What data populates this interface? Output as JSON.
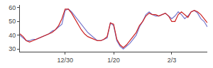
{
  "chart_data": {
    "type": "line",
    "categories": [
      null,
      null,
      null,
      null,
      null,
      null,
      null,
      null,
      null,
      null,
      null,
      null,
      null,
      null,
      "12/30",
      null,
      null,
      null,
      null,
      null,
      null,
      null,
      null,
      null,
      null,
      null,
      null,
      null,
      null,
      "1/20",
      null,
      null,
      null,
      null,
      null,
      null,
      null,
      null,
      null,
      null,
      null,
      null,
      null,
      null,
      null,
      null,
      null,
      "2/3",
      null,
      null,
      null,
      null,
      null,
      null,
      null,
      null,
      null,
      null,
      null
    ],
    "series": [
      {
        "color": "#7777cc",
        "values": [
          40,
          38,
          36,
          36,
          37,
          37,
          38,
          39,
          40,
          41,
          43,
          44,
          46,
          48,
          58,
          59,
          57,
          54,
          51,
          48,
          45,
          42,
          40,
          38,
          36,
          36,
          37,
          38,
          49,
          47,
          36,
          32,
          30,
          32,
          34,
          37,
          40,
          46,
          50,
          55,
          57,
          55,
          54,
          54,
          55,
          56,
          54,
          52,
          54,
          57,
          55,
          52,
          54,
          57,
          58,
          56,
          52,
          50,
          46
        ]
      },
      {
        "color": "#cc2222",
        "values": [
          41,
          39,
          36,
          35,
          36,
          37,
          38,
          39,
          40,
          41,
          42,
          44,
          47,
          52,
          59,
          59,
          56,
          52,
          48,
          44,
          41,
          39,
          38,
          37,
          36,
          36,
          37,
          39,
          49,
          48,
          37,
          33,
          31,
          33,
          36,
          39,
          42,
          47,
          50,
          54,
          56,
          55,
          55,
          54,
          55,
          56,
          54,
          50,
          50,
          55,
          57,
          55,
          53,
          57,
          58,
          57,
          55,
          52,
          49
        ]
      }
    ],
    "ylim": [
      28,
      62
    ],
    "yticks": [
      30,
      40,
      50,
      60
    ],
    "grid": false
  }
}
